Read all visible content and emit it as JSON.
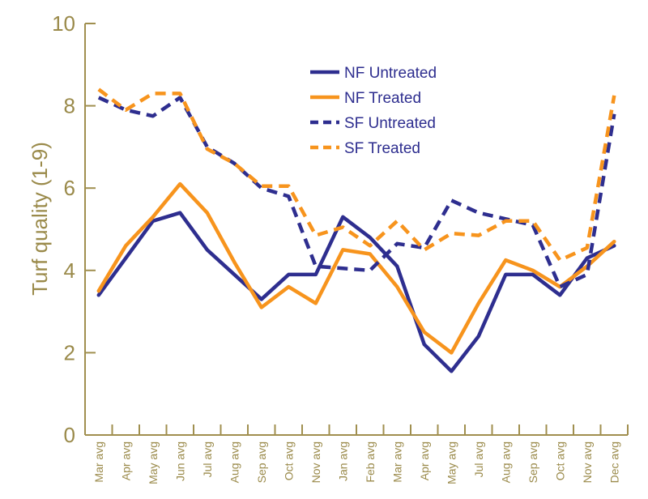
{
  "chart_data": {
    "type": "line",
    "title": "",
    "xlabel": "",
    "ylabel": "Turf quality (1-9)",
    "ylim": [
      0,
      10
    ],
    "yticks": [
      0,
      2,
      4,
      6,
      8,
      10
    ],
    "categories": [
      "Mar avg",
      "Apr avg",
      "May avg",
      "Jun avg",
      "Jul avg",
      "Aug avg",
      "Sep avg",
      "Oct avg",
      "Nov avg",
      "Jan avg",
      "Feb avg",
      "Mar avg",
      "Apr avg",
      "May avg",
      "Jul avg",
      "Aug avg",
      "Sep avg",
      "Oct avg",
      "Nov avg",
      "Dec avg"
    ],
    "legend_position": "top-center",
    "series": [
      {
        "name": "NF Untreated",
        "style": "solid",
        "color": "#2e2e8f",
        "values": [
          3.4,
          4.3,
          5.2,
          5.4,
          4.5,
          3.9,
          3.3,
          3.9,
          3.9,
          5.3,
          4.8,
          4.1,
          2.2,
          1.55,
          2.4,
          3.9,
          3.9,
          3.4,
          4.3,
          4.6
        ]
      },
      {
        "name": "NF Treated",
        "style": "solid",
        "color": "#f7941d",
        "values": [
          3.5,
          4.6,
          5.3,
          6.1,
          5.4,
          4.2,
          3.1,
          3.6,
          3.2,
          4.5,
          4.4,
          3.6,
          2.5,
          2.0,
          3.2,
          4.25,
          4.0,
          3.6,
          4.1,
          4.7
        ]
      },
      {
        "name": "SF Untreated",
        "style": "dashed",
        "color": "#2e2e8f",
        "values": [
          8.2,
          7.9,
          7.75,
          8.2,
          7.0,
          6.6,
          6.0,
          5.8,
          4.1,
          4.05,
          4.0,
          4.65,
          4.55,
          5.7,
          5.4,
          5.25,
          5.1,
          3.6,
          3.9,
          7.8
        ]
      },
      {
        "name": "SF Treated",
        "style": "dashed",
        "color": "#f7941d",
        "values": [
          8.4,
          7.9,
          8.3,
          8.3,
          6.95,
          6.6,
          6.05,
          6.05,
          4.85,
          5.05,
          4.6,
          5.2,
          4.5,
          4.9,
          4.85,
          5.2,
          5.2,
          4.25,
          4.55,
          8.25
        ]
      }
    ]
  }
}
